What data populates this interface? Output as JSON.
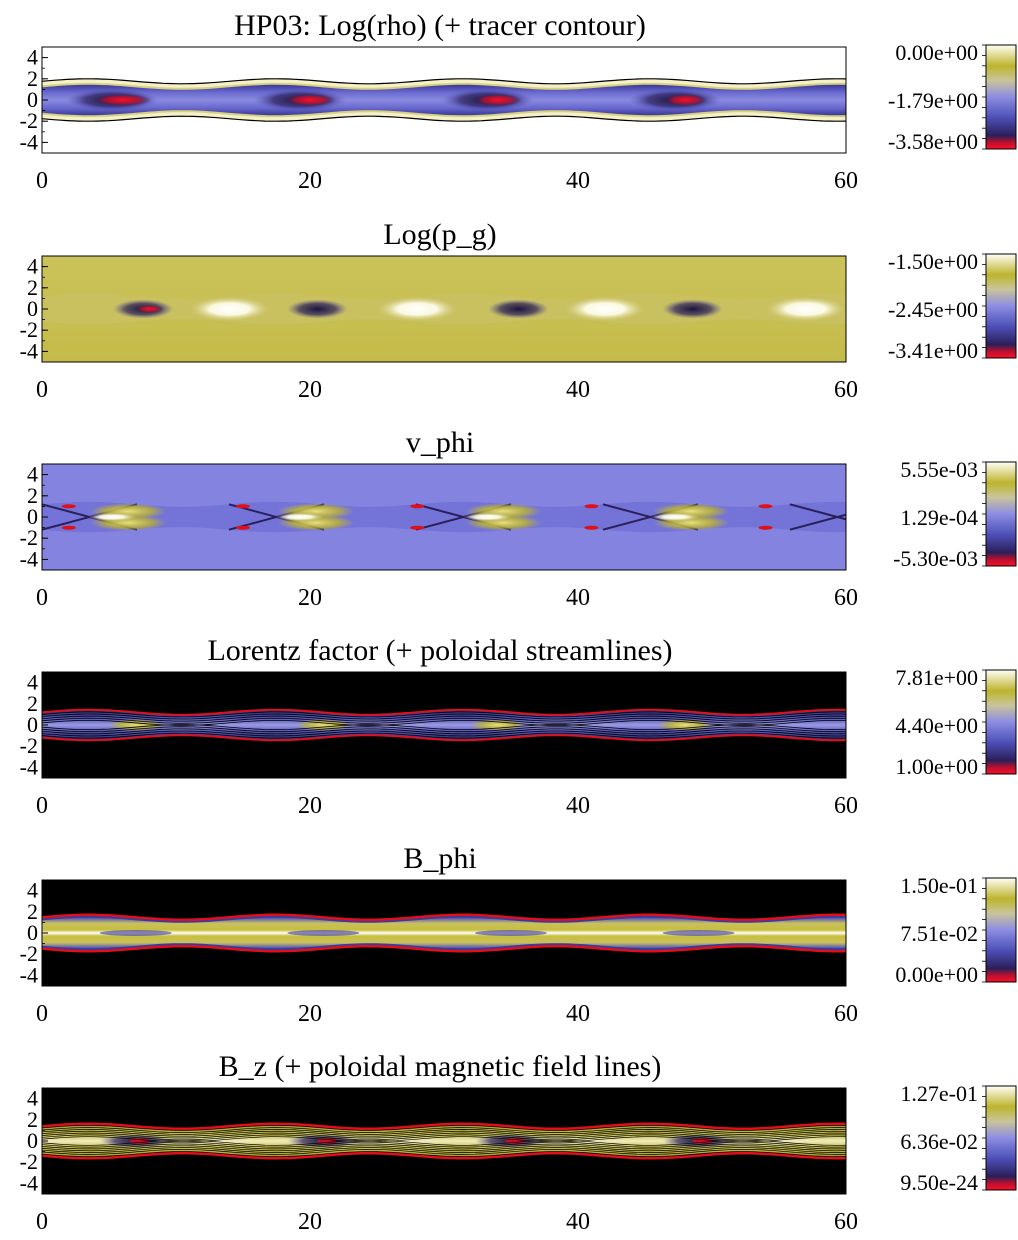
{
  "chart_data": [
    {
      "type": "heatmap",
      "title": "HP03: Log(rho) (+ tracer contour)",
      "xlim": [
        0,
        60
      ],
      "ylim": [
        -5,
        5
      ],
      "xticks": [
        "0",
        "20",
        "40",
        "60"
      ],
      "yticks": [
        "4",
        "2",
        "0",
        "-2",
        "-4"
      ],
      "colorbar": {
        "labels": [
          "0.00e+00",
          "-1.79e+00",
          "-3.58e+00"
        ],
        "range": [
          -3.58,
          0.0
        ]
      },
      "background": "white",
      "jet_halfwidth": 1.2,
      "band_value": 0.45,
      "knots": [
        6,
        20,
        34,
        48
      ],
      "knot_values": [
        0.9,
        0.75,
        0.7,
        0.6
      ],
      "overlay": "black tracer contour at jet boundary"
    },
    {
      "type": "heatmap",
      "title": "Log(p_g)",
      "xlim": [
        0,
        60
      ],
      "ylim": [
        -5,
        5
      ],
      "xticks": [
        "0",
        "20",
        "40",
        "60"
      ],
      "yticks": [
        "4",
        "2",
        "0",
        "-2",
        "-4"
      ],
      "colorbar": {
        "labels": [
          "-1.50e+00",
          "-2.45e+00",
          "-3.41e+00"
        ],
        "range": [
          -3.41,
          -1.5
        ]
      },
      "background": "yellow",
      "jet_halfwidth": 1.2,
      "knots": [
        8,
        21,
        36,
        49
      ],
      "knot_values": [
        0.95,
        0.45,
        0.35,
        0.3
      ],
      "bright_spots": [
        14,
        28,
        42,
        57
      ]
    },
    {
      "type": "heatmap",
      "title": "v_phi",
      "xlim": [
        0,
        60
      ],
      "ylim": [
        -5,
        5
      ],
      "xticks": [
        "0",
        "20",
        "40",
        "60"
      ],
      "yticks": [
        "4",
        "2",
        "0",
        "-2",
        "-4"
      ],
      "colorbar": {
        "labels": [
          "5.55e-03",
          "1.29e-04",
          "-5.30e-03"
        ],
        "range": [
          -0.0053,
          0.00555
        ]
      },
      "background": "blue",
      "jet_halfwidth": 1.2,
      "bright_spots": [
        6,
        20,
        34,
        48
      ]
    },
    {
      "type": "heatmap",
      "title": "Lorentz factor (+ poloidal streamlines)",
      "xlim": [
        0,
        60
      ],
      "ylim": [
        -5,
        5
      ],
      "xticks": [
        "0",
        "20",
        "40",
        "60"
      ],
      "yticks": [
        "4",
        "2",
        "0",
        "-2",
        "-4"
      ],
      "colorbar": {
        "labels": [
          "7.81e+00",
          "4.40e+00",
          "1.00e+00"
        ],
        "range": [
          1.0,
          7.81
        ]
      },
      "background": "black",
      "jet_halfwidth": 1.2,
      "knots": [
        7,
        21,
        34,
        48
      ],
      "overlay": "black poloidal streamlines inside jet, red boundary"
    },
    {
      "type": "heatmap",
      "title": "B_phi",
      "xlim": [
        0,
        60
      ],
      "ylim": [
        -5,
        5
      ],
      "xticks": [
        "0",
        "20",
        "40",
        "60"
      ],
      "yticks": [
        "4",
        "2",
        "0",
        "-2",
        "-4"
      ],
      "colorbar": {
        "labels": [
          "1.50e-01",
          "7.51e-02",
          "0.00e+00"
        ],
        "range": [
          0.0,
          0.15
        ]
      },
      "background": "black",
      "jet_halfwidth": 1.2,
      "knots": [
        7,
        21,
        35,
        49
      ],
      "overlay": "red jet boundary"
    },
    {
      "type": "heatmap",
      "title": "B_z (+ poloidal magnetic field lines)",
      "xlim": [
        0,
        60
      ],
      "ylim": [
        -5,
        5
      ],
      "xticks": [
        "0",
        "20",
        "40",
        "60"
      ],
      "yticks": [
        "4",
        "2",
        "0",
        "-2",
        "-4"
      ],
      "colorbar": {
        "labels": [
          "1.27e-01",
          "6.36e-02",
          "9.50e-24"
        ],
        "range": [
          9.5e-24,
          0.127
        ]
      },
      "background": "black",
      "jet_halfwidth": 1.2,
      "knots": [
        7,
        21,
        35,
        49
      ],
      "overlay": "black poloidal field lines inside jet, red boundary"
    }
  ],
  "colormap": {
    "stops": [
      "#f8102a",
      "#2a1f5a",
      "#4d4fb6",
      "#8c8ce2",
      "#c9c59a",
      "#bdb42e",
      "#fffff4"
    ],
    "accent_red": "#e0101a",
    "contour_black": "#000000"
  }
}
